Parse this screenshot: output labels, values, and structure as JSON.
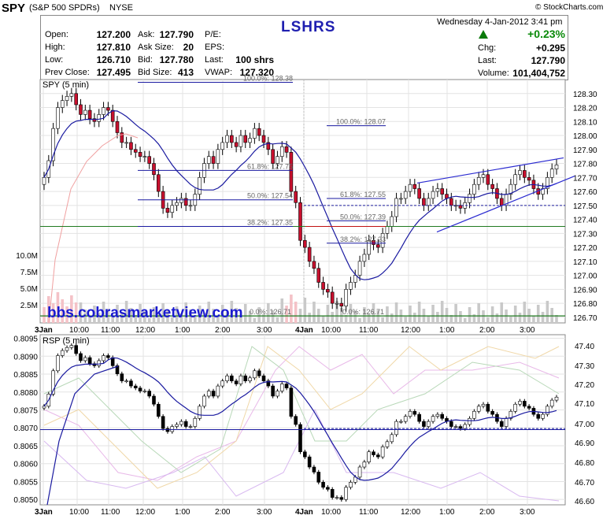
{
  "header": {
    "symbol": "SPY",
    "name": "(S&P 500 SPDRs)",
    "exchange": "NYSE",
    "copyright": "© StockCharts.com",
    "title": "LSHRS",
    "datetime": "Wednesday  4-Jan-2012  3:41 pm",
    "pct_change": "+0.23%",
    "quotes": {
      "open_label": "Open:",
      "open": "127.200",
      "high_label": "High:",
      "high": "127.810",
      "low_label": "Low:",
      "low": "126.710",
      "prev_label": "Prev Close:",
      "prev": "127.495",
      "ask_label": "Ask:",
      "ask": "127.790",
      "asksize_label": "Ask Size:",
      "asksize": "20",
      "bid_label": "Bid:",
      "bid": "127.780",
      "bidsize_label": "Bid Size:",
      "bidsize": "413",
      "pe_label": "P/E:",
      "eps_label": "EPS:",
      "last_label": "Last:",
      "last": "100 shrs",
      "vwap_label": "VWAP:",
      "vwap": "127.320",
      "chg_label": "Chg:",
      "chg": "+0.295",
      "last2_label": "Last:",
      "last2": "127.790",
      "volume_label": "Volume:",
      "volume": "101,404,752"
    }
  },
  "colors": {
    "up": "#ffffff",
    "down": "#c8102e",
    "ma": "#1a1aa0",
    "grid": "#e3e3e3",
    "title": "#1f1fb0",
    "green_line": "#207a20"
  },
  "chart_data": [
    {
      "type": "candlestick",
      "panel_label": "SPY (5 min)",
      "ylim": [
        126.66,
        128.4
      ],
      "y_ticks": [
        "128.30",
        "128.20",
        "128.10",
        "128.00",
        "127.90",
        "127.80",
        "127.70",
        "127.60",
        "127.50",
        "127.40",
        "127.30",
        "127.20",
        "127.10",
        "127.00",
        "126.90",
        "126.80",
        "126.70"
      ],
      "volume_ticks": [
        "10.0M",
        "7.5M",
        "5.0M",
        "2.5M"
      ],
      "x_ticks": [
        "3Jan",
        "10:00",
        "11:00",
        "12:00",
        "1:00",
        "2:00",
        "3:00",
        "4Jan",
        "10:00",
        "11:00",
        "12:00",
        "1:00",
        "2:00",
        "3:00"
      ],
      "watermark": "bbs.cobrasmarketview.com",
      "fib_labels": [
        "100.0%: 128.38",
        "61.8%: 127.75",
        "50.0%: 127.54",
        "38.2%: 127.35",
        "100.0%: 128.07",
        "61.8%: 127.55",
        "50.0%: 127.39",
        "38.2%: 127.23",
        "0.0%: 126.71",
        "0.0%: 126.71"
      ],
      "horizontal_levels": [
        127.5,
        127.35,
        126.71
      ],
      "closes": [
        127.7,
        127.82,
        128.05,
        128.2,
        128.25,
        128.28,
        128.3,
        128.22,
        128.15,
        128.18,
        128.12,
        128.1,
        128.15,
        128.2,
        128.18,
        128.1,
        128.02,
        127.95,
        127.95,
        127.9,
        127.88,
        127.85,
        127.85,
        127.8,
        127.72,
        127.6,
        127.48,
        127.45,
        127.5,
        127.52,
        127.55,
        127.5,
        127.5,
        127.58,
        127.7,
        127.8,
        127.85,
        127.8,
        127.9,
        127.95,
        128.0,
        127.95,
        127.92,
        128.0,
        127.95,
        127.98,
        128.05,
        128.0,
        127.95,
        127.9,
        127.8,
        127.85,
        127.92,
        127.88,
        127.6,
        127.52,
        127.25,
        127.2,
        127.1,
        127.05,
        126.95,
        126.9,
        126.88,
        126.8,
        126.8,
        126.78,
        126.9,
        126.95,
        127.0,
        127.1,
        127.15,
        127.25,
        127.22,
        127.2,
        127.3,
        127.35,
        127.42,
        127.55,
        127.55,
        127.6,
        127.65,
        127.62,
        127.55,
        127.5,
        127.55,
        127.6,
        127.62,
        127.58,
        127.55,
        127.5,
        127.5,
        127.48,
        127.52,
        127.58,
        127.65,
        127.7,
        127.72,
        127.65,
        127.62,
        127.55,
        127.5,
        127.58,
        127.65,
        127.72,
        127.75,
        127.7,
        127.68,
        127.62,
        127.58,
        127.62,
        127.7,
        127.76,
        127.79
      ]
    },
    {
      "type": "line",
      "panel_label": "RSP (5 min)",
      "left_ylim": [
        0.80485,
        0.8096
      ],
      "left_ticks": [
        "0.8095",
        "0.8090",
        "0.8085",
        "0.8080",
        "0.8075",
        "0.8070",
        "0.8065",
        "0.8060",
        "0.8055",
        "0.8050"
      ],
      "right_ticks": [
        "47.40",
        "47.30",
        "47.20",
        "47.10",
        "47.00",
        "46.90",
        "46.80",
        "46.70",
        "46.60"
      ],
      "x_ticks": [
        "3Jan",
        "10:00",
        "11:00",
        "12:00",
        "1:00",
        "2:00",
        "3:00",
        "4Jan",
        "10:00",
        "11:00",
        "12:00",
        "1:00",
        "2:00",
        "3:00"
      ],
      "level": 0.80695
    }
  ]
}
